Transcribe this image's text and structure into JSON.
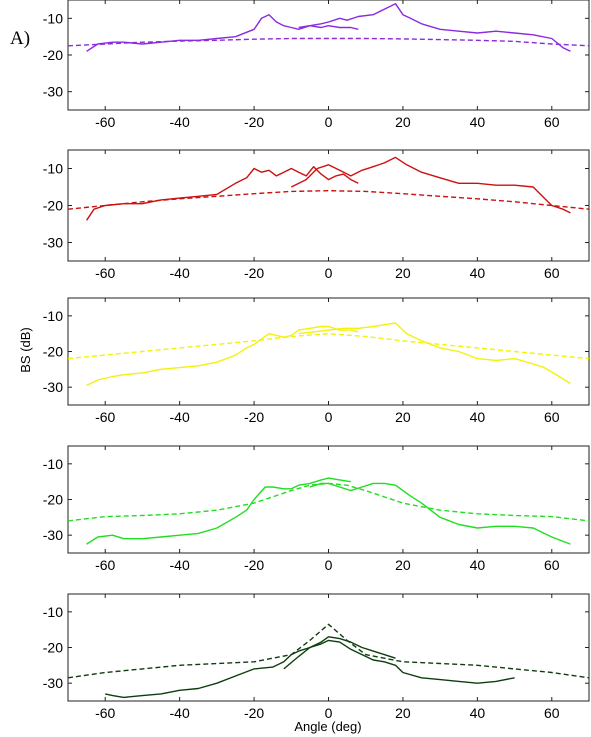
{
  "figure": {
    "panel_label": "A)",
    "xlabel": "Angle (deg)",
    "ylabel": "BS (dB)"
  },
  "chart_data": [
    {
      "type": "line",
      "xlim": [
        -70,
        70
      ],
      "ylim": [
        -35,
        -5
      ],
      "xticks": [
        -60,
        -40,
        -20,
        0,
        20,
        40,
        60
      ],
      "yticks": [
        -10,
        -20,
        -30
      ],
      "grid": false,
      "series": [
        {
          "style": "solid",
          "color": "#8a2be2",
          "x": [
            -65,
            -62,
            -58,
            -55,
            -50,
            -45,
            -40,
            -35,
            -30,
            -25,
            -20,
            -18,
            -16,
            -14,
            -12,
            -10,
            -8,
            -5,
            -2,
            0,
            3,
            6,
            8
          ],
          "y": [
            -19,
            -17,
            -16.5,
            -16.5,
            -17,
            -16.5,
            -16,
            -16,
            -15.5,
            -15,
            -13,
            -10,
            -9,
            -11,
            -12,
            -12.5,
            -13,
            -12,
            -12.5,
            -12,
            -12.5,
            -12.5,
            -13
          ]
        },
        {
          "style": "solid",
          "color": "#8a2be2",
          "x": [
            -8,
            -5,
            -2,
            0,
            3,
            5,
            8,
            12,
            15,
            18,
            20,
            22,
            25,
            30,
            35,
            40,
            45,
            50,
            55,
            60,
            63,
            65
          ],
          "y": [
            -12.5,
            -12,
            -11.5,
            -11,
            -10,
            -10.5,
            -9.5,
            -9,
            -7.5,
            -6,
            -9,
            -10,
            -11.5,
            -13,
            -13.5,
            -14,
            -13.5,
            -14,
            -14.5,
            -15.5,
            -18,
            -19
          ]
        },
        {
          "style": "dashed",
          "color": "#8a2be2",
          "x": [
            -70,
            -60,
            -50,
            -40,
            -30,
            -20,
            -10,
            0,
            10,
            20,
            30,
            40,
            50,
            60,
            70
          ],
          "y": [
            -17.5,
            -17,
            -16.5,
            -16.2,
            -16,
            -15.7,
            -15.5,
            -15.5,
            -15.5,
            -15.6,
            -15.8,
            -16,
            -16.3,
            -17,
            -17.5
          ]
        }
      ]
    },
    {
      "type": "line",
      "xlim": [
        -70,
        70
      ],
      "ylim": [
        -35,
        -5
      ],
      "xticks": [
        -60,
        -40,
        -20,
        0,
        20,
        40,
        60
      ],
      "yticks": [
        -10,
        -20,
        -30
      ],
      "grid": false,
      "series": [
        {
          "style": "solid",
          "color": "#cc1111",
          "x": [
            -65,
            -63,
            -60,
            -55,
            -50,
            -45,
            -40,
            -35,
            -30,
            -25,
            -22,
            -20,
            -18,
            -16,
            -14,
            -12,
            -10,
            -8,
            -6,
            -4,
            -2,
            0,
            2,
            4,
            6,
            8
          ],
          "y": [
            -24,
            -21,
            -20,
            -19.5,
            -19.5,
            -18.5,
            -18,
            -17.5,
            -17,
            -14,
            -12.5,
            -10,
            -11,
            -10.5,
            -12,
            -11,
            -10,
            -11,
            -12,
            -9.5,
            -11.5,
            -13,
            -12,
            -11.5,
            -13,
            -14
          ]
        },
        {
          "style": "solid",
          "color": "#cc1111",
          "x": [
            -10,
            -6,
            -3,
            0,
            3,
            6,
            9,
            12,
            15,
            18,
            21,
            25,
            30,
            35,
            40,
            45,
            50,
            55,
            58,
            60,
            63,
            65
          ],
          "y": [
            -15,
            -13,
            -10,
            -9,
            -10.5,
            -12,
            -10.5,
            -9.5,
            -8.5,
            -7,
            -9,
            -11,
            -12.5,
            -14,
            -14,
            -14.5,
            -14.5,
            -15,
            -18,
            -20,
            -21,
            -22
          ]
        },
        {
          "style": "dashed",
          "color": "#cc1111",
          "x": [
            -70,
            -60,
            -50,
            -40,
            -30,
            -20,
            -10,
            0,
            10,
            20,
            30,
            40,
            50,
            60,
            70
          ],
          "y": [
            -21,
            -20,
            -19,
            -18.2,
            -17.5,
            -16.8,
            -16.2,
            -16,
            -16.2,
            -16.8,
            -17.5,
            -18.2,
            -19,
            -20,
            -21
          ]
        }
      ]
    },
    {
      "type": "line",
      "xlim": [
        -70,
        70
      ],
      "ylim": [
        -35,
        -5
      ],
      "xticks": [
        -60,
        -40,
        -20,
        0,
        20,
        40,
        60
      ],
      "yticks": [
        -10,
        -20,
        -30
      ],
      "grid": false,
      "series": [
        {
          "style": "solid",
          "color": "#f2f20c",
          "x": [
            -65,
            -62,
            -58,
            -55,
            -50,
            -45,
            -40,
            -35,
            -30,
            -25,
            -22,
            -20,
            -18,
            -16,
            -14,
            -12,
            -10,
            -8,
            -5,
            -2,
            0,
            3,
            6,
            8
          ],
          "y": [
            -29.5,
            -28,
            -27,
            -26.5,
            -26,
            -25,
            -24.5,
            -24,
            -23,
            -21,
            -19,
            -18,
            -16.5,
            -15,
            -15.5,
            -16,
            -15.5,
            -14,
            -13.5,
            -13,
            -13,
            -14,
            -14,
            -14.5
          ]
        },
        {
          "style": "solid",
          "color": "#f2f20c",
          "x": [
            -8,
            -4,
            0,
            4,
            8,
            12,
            15,
            18,
            21,
            25,
            30,
            35,
            40,
            45,
            50,
            55,
            58,
            62,
            65
          ],
          "y": [
            -15,
            -14.5,
            -14,
            -13.5,
            -13.5,
            -13,
            -12.5,
            -12,
            -15,
            -17,
            -19,
            -20,
            -22,
            -22.5,
            -22,
            -23.5,
            -24.5,
            -27,
            -29
          ]
        },
        {
          "style": "dashed",
          "color": "#f2f20c",
          "x": [
            -70,
            -60,
            -50,
            -40,
            -30,
            -20,
            -10,
            0,
            10,
            20,
            30,
            40,
            50,
            60,
            70
          ],
          "y": [
            -22,
            -21,
            -20,
            -19,
            -18,
            -17,
            -15.8,
            -15,
            -15.8,
            -17,
            -18,
            -19,
            -20,
            -21,
            -22
          ]
        }
      ]
    },
    {
      "type": "line",
      "xlim": [
        -70,
        70
      ],
      "ylim": [
        -35,
        -5
      ],
      "xticks": [
        -60,
        -40,
        -20,
        0,
        20,
        40,
        60
      ],
      "yticks": [
        -10,
        -20,
        -30
      ],
      "grid": false,
      "series": [
        {
          "style": "solid",
          "color": "#22dd22",
          "x": [
            -65,
            -62,
            -58,
            -55,
            -50,
            -45,
            -40,
            -35,
            -30,
            -25,
            -22,
            -20,
            -17,
            -15,
            -12,
            -10,
            -8,
            -5,
            -2,
            0,
            3,
            6
          ],
          "y": [
            -32.5,
            -30.5,
            -30,
            -31,
            -31,
            -30.5,
            -30,
            -29.5,
            -28,
            -25,
            -23,
            -20,
            -16.5,
            -16.5,
            -17,
            -17,
            -16,
            -15.5,
            -14.5,
            -14,
            -14.5,
            -15
          ]
        },
        {
          "style": "solid",
          "color": "#22dd22",
          "x": [
            -5,
            -2,
            0,
            3,
            6,
            9,
            12,
            15,
            18,
            22,
            25,
            30,
            35,
            40,
            45,
            50,
            55,
            60,
            65
          ],
          "y": [
            -16.5,
            -15.5,
            -15.5,
            -16.5,
            -17.5,
            -16.5,
            -15.5,
            -15.5,
            -16,
            -19,
            -21,
            -25,
            -27,
            -28,
            -27.5,
            -27.5,
            -28,
            -30.5,
            -32.5
          ]
        },
        {
          "style": "dashed",
          "color": "#22dd22",
          "x": [
            -70,
            -60,
            -50,
            -40,
            -30,
            -20,
            -10,
            -5,
            0,
            5,
            10,
            20,
            30,
            40,
            50,
            60,
            70
          ],
          "y": [
            -26,
            -24.8,
            -24.5,
            -24,
            -23,
            -21,
            -17.5,
            -16,
            -15.5,
            -16,
            -17.5,
            -21,
            -23,
            -24,
            -24.5,
            -24.8,
            -26
          ]
        }
      ]
    },
    {
      "type": "line",
      "xlim": [
        -70,
        70
      ],
      "ylim": [
        -35,
        -5
      ],
      "xticks": [
        -60,
        -40,
        -20,
        0,
        20,
        40,
        60
      ],
      "yticks": [
        -10,
        -20,
        -30
      ],
      "grid": false,
      "series": [
        {
          "style": "solid",
          "color": "#0f3d0f",
          "x": [
            -60,
            -58,
            -55,
            -50,
            -45,
            -40,
            -35,
            -30,
            -25,
            -20,
            -15,
            -12,
            -10,
            -8,
            -5,
            -2,
            0,
            3,
            6,
            9,
            12,
            15,
            18,
            20,
            25,
            30,
            35,
            40,
            45,
            50
          ],
          "y": [
            -33,
            -33.5,
            -34,
            -33.5,
            -33,
            -32,
            -31.5,
            -30,
            -28,
            -26,
            -25.5,
            -24,
            -22,
            -21,
            -20,
            -19,
            -18,
            -18.5,
            -20.5,
            -22,
            -23.5,
            -24,
            -25,
            -27,
            -28.5,
            -29,
            -29.5,
            -30,
            -29.5,
            -28.5
          ]
        },
        {
          "style": "solid",
          "color": "#0f3d0f",
          "x": [
            -12,
            -8,
            -5,
            -2,
            0,
            3,
            6,
            9,
            12,
            15,
            18
          ],
          "y": [
            -26,
            -22.5,
            -20,
            -18.5,
            -17,
            -17.5,
            -18.5,
            -20,
            -21,
            -22,
            -23
          ]
        },
        {
          "style": "dashed",
          "color": "#0f3d0f",
          "x": [
            -70,
            -60,
            -50,
            -40,
            -30,
            -20,
            -10,
            -5,
            0,
            5,
            10,
            20,
            30,
            40,
            50,
            60,
            70
          ],
          "y": [
            -28.5,
            -27,
            -26,
            -25,
            -24.5,
            -24,
            -22,
            -18,
            -13.5,
            -18,
            -22,
            -24,
            -24.5,
            -25,
            -26,
            -27,
            -28.5
          ]
        }
      ]
    }
  ]
}
